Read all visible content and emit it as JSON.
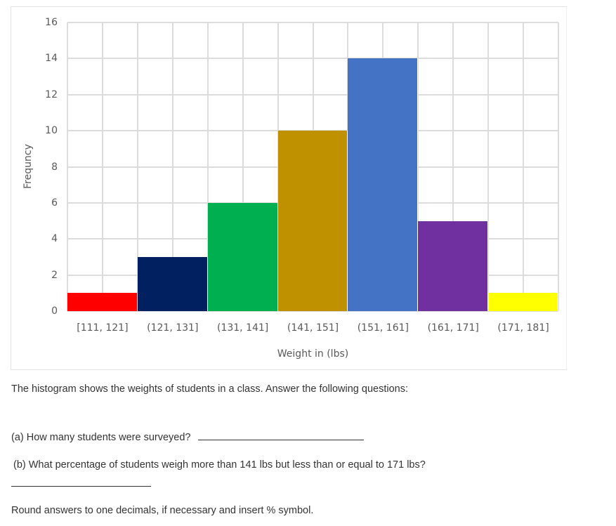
{
  "chart_data": {
    "type": "bar",
    "title": "",
    "xlabel": "Weight in (lbs)",
    "ylabel": "Frequncy",
    "ylim": [
      0,
      16
    ],
    "yticks": [
      0,
      2,
      4,
      6,
      8,
      10,
      12,
      14,
      16
    ],
    "grid": true,
    "legend": "none",
    "categories": [
      "[111, 121]",
      "(121, 131]",
      "(131, 141]",
      "(141, 151]",
      "(151, 161]",
      "(161, 171]",
      "(171, 181]"
    ],
    "values": [
      1,
      3,
      6,
      10,
      14,
      5,
      1
    ],
    "colors": [
      "#ff0000",
      "#002060",
      "#00b050",
      "#bf9000",
      "#4472c4",
      "#7030a0",
      "#ffff00"
    ]
  },
  "question": {
    "intro": "The histogram shows the weights of students in a class. Answer the following questions:",
    "part_a": "(a) How many students were surveyed?",
    "part_b": "(b) What percentage of students weigh more than 141 lbs but less than or equal to 171 lbs?",
    "note": "Round answers to one decimals, if necessary and insert % symbol."
  }
}
